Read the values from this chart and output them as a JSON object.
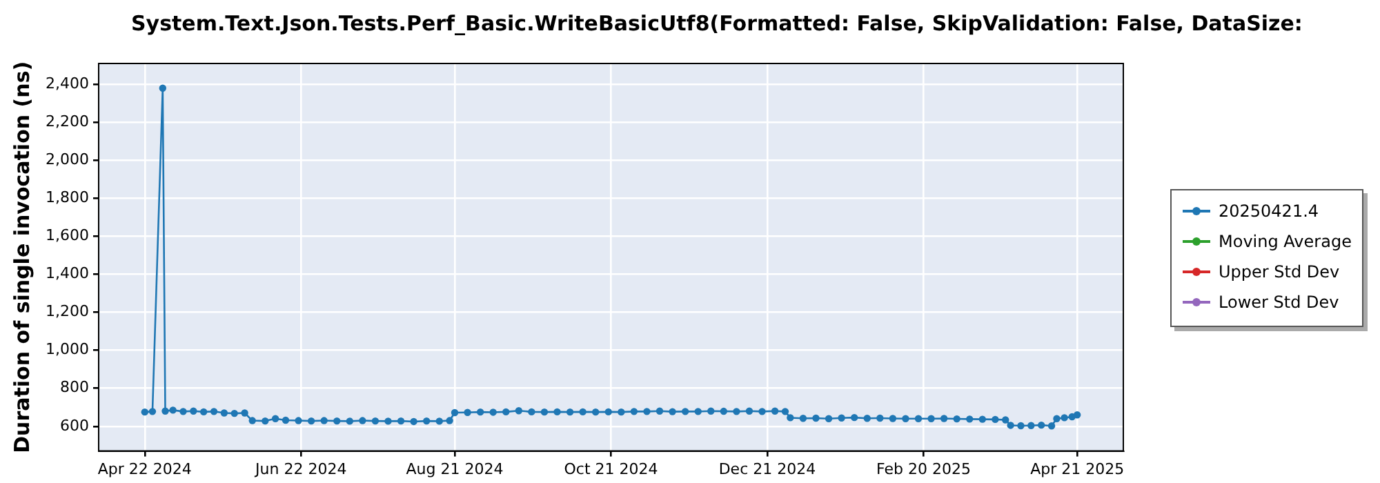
{
  "chart_data": {
    "type": "line",
    "title": "System.Text.Json.Tests.Perf_Basic.WriteBasicUtf8(Formatted: False, SkipValidation: False, DataSize:",
    "ylabel": "Duration of single invocation (ns)",
    "xlim": [
      "2024-04-04",
      "2025-05-09"
    ],
    "xticks": [
      {
        "value": "2024-04-22",
        "label": "Apr 22 2024"
      },
      {
        "value": "2024-06-22",
        "label": "Jun 22 2024"
      },
      {
        "value": "2024-08-21",
        "label": "Aug 21 2024"
      },
      {
        "value": "2024-10-21",
        "label": "Oct 21 2024"
      },
      {
        "value": "2024-12-21",
        "label": "Dec 21 2024"
      },
      {
        "value": "2025-02-20",
        "label": "Feb 20 2025"
      },
      {
        "value": "2025-04-21",
        "label": "Apr 21 2025"
      }
    ],
    "ylim": [
      470,
      2510
    ],
    "yticks": [
      {
        "value": 600,
        "label": "600"
      },
      {
        "value": 800,
        "label": "800"
      },
      {
        "value": 1000,
        "label": "1,000"
      },
      {
        "value": 1200,
        "label": "1,200"
      },
      {
        "value": 1400,
        "label": "1,400"
      },
      {
        "value": 1600,
        "label": "1,600"
      },
      {
        "value": 1800,
        "label": "1,800"
      },
      {
        "value": 2000,
        "label": "2,000"
      },
      {
        "value": 2200,
        "label": "2,200"
      },
      {
        "value": 2400,
        "label": "2,400"
      }
    ],
    "x": [
      "2024-04-22",
      "2024-04-25",
      "2024-04-29",
      "2024-04-30",
      "2024-05-03",
      "2024-05-07",
      "2024-05-11",
      "2024-05-15",
      "2024-05-19",
      "2024-05-23",
      "2024-05-27",
      "2024-05-31",
      "2024-06-03",
      "2024-06-08",
      "2024-06-12",
      "2024-06-16",
      "2024-06-21",
      "2024-06-26",
      "2024-07-01",
      "2024-07-06",
      "2024-07-11",
      "2024-07-16",
      "2024-07-21",
      "2024-07-26",
      "2024-07-31",
      "2024-08-05",
      "2024-08-10",
      "2024-08-15",
      "2024-08-19",
      "2024-08-21",
      "2024-08-26",
      "2024-08-31",
      "2024-09-05",
      "2024-09-10",
      "2024-09-15",
      "2024-09-20",
      "2024-09-25",
      "2024-09-30",
      "2024-10-05",
      "2024-10-10",
      "2024-10-15",
      "2024-10-20",
      "2024-10-25",
      "2024-10-30",
      "2024-11-04",
      "2024-11-09",
      "2024-11-14",
      "2024-11-19",
      "2024-11-24",
      "2024-11-29",
      "2024-12-04",
      "2024-12-09",
      "2024-12-14",
      "2024-12-19",
      "2024-12-24",
      "2024-12-28",
      "2024-12-30",
      "2025-01-04",
      "2025-01-09",
      "2025-01-14",
      "2025-01-19",
      "2025-01-24",
      "2025-01-29",
      "2025-02-03",
      "2025-02-08",
      "2025-02-13",
      "2025-02-18",
      "2025-02-23",
      "2025-02-28",
      "2025-03-05",
      "2025-03-10",
      "2025-03-15",
      "2025-03-20",
      "2025-03-24",
      "2025-03-26",
      "2025-03-30",
      "2025-04-03",
      "2025-04-07",
      "2025-04-11",
      "2025-04-13",
      "2025-04-16",
      "2025-04-19",
      "2025-04-21"
    ],
    "series": [
      {
        "name": "20250421.4",
        "color": "#1f77b4",
        "values": [
          675,
          678,
          2380,
          680,
          685,
          678,
          680,
          676,
          678,
          670,
          668,
          670,
          630,
          628,
          640,
          632,
          630,
          628,
          630,
          628,
          627,
          630,
          628,
          627,
          628,
          625,
          628,
          627,
          630,
          672,
          673,
          675,
          674,
          676,
          682,
          676,
          675,
          676,
          675,
          676,
          675,
          676,
          675,
          678,
          678,
          680,
          677,
          678,
          678,
          680,
          679,
          678,
          680,
          678,
          680,
          678,
          645,
          642,
          643,
          640,
          644,
          646,
          642,
          643,
          641,
          640,
          640,
          640,
          641,
          639,
          638,
          637,
          636,
          634,
          605,
          603,
          604,
          606,
          602,
          640,
          645,
          650,
          660
        ]
      },
      {
        "name": "Moving Average",
        "color": "#2ca02c",
        "values": [
          null,
          null,
          null,
          null,
          null,
          null,
          null,
          null,
          null,
          null,
          null,
          null,
          null,
          null,
          null,
          null,
          null,
          null,
          null,
          null,
          null,
          null,
          null,
          null,
          null,
          null,
          null,
          null,
          null,
          null,
          null,
          null,
          null,
          null,
          null,
          null,
          null,
          null,
          null,
          null,
          null,
          null,
          null,
          null,
          null,
          null,
          null,
          null,
          null,
          null,
          null,
          null,
          null,
          null,
          null,
          null,
          null,
          null,
          null,
          null,
          null,
          null,
          null,
          null,
          null,
          null,
          null,
          null,
          null,
          null,
          null,
          null,
          null,
          null,
          null,
          null,
          null,
          null,
          null,
          null,
          null,
          null,
          null
        ]
      },
      {
        "name": "Upper Std Dev",
        "color": "#d62728",
        "values": [
          null,
          null,
          null,
          null,
          null,
          null,
          null,
          null,
          null,
          null,
          null,
          null,
          null,
          null,
          null,
          null,
          null,
          null,
          null,
          null,
          null,
          null,
          null,
          null,
          null,
          null,
          null,
          null,
          null,
          null,
          null,
          null,
          null,
          null,
          null,
          null,
          null,
          null,
          null,
          null,
          null,
          null,
          null,
          null,
          null,
          null,
          null,
          null,
          null,
          null,
          null,
          null,
          null,
          null,
          null,
          null,
          null,
          null,
          null,
          null,
          null,
          null,
          null,
          null,
          null,
          null,
          null,
          null,
          null,
          null,
          null,
          null,
          null,
          null,
          null,
          null,
          null,
          null,
          null,
          null,
          null,
          null,
          null
        ]
      },
      {
        "name": "Lower Std Dev",
        "color": "#9467bd",
        "values": [
          null,
          null,
          null,
          null,
          null,
          null,
          null,
          null,
          null,
          null,
          null,
          null,
          null,
          null,
          null,
          null,
          null,
          null,
          null,
          null,
          null,
          null,
          null,
          null,
          null,
          null,
          null,
          null,
          null,
          null,
          null,
          null,
          null,
          null,
          null,
          null,
          null,
          null,
          null,
          null,
          null,
          null,
          null,
          null,
          null,
          null,
          null,
          null,
          null,
          null,
          null,
          null,
          null,
          null,
          null,
          null,
          null,
          null,
          null,
          null,
          null,
          null,
          null,
          null,
          null,
          null,
          null,
          null,
          null,
          null,
          null,
          null,
          null,
          null,
          null,
          null,
          null,
          null,
          null,
          null,
          null,
          null,
          null
        ]
      }
    ],
    "marker": "circle",
    "line_style": "solid",
    "grid": true,
    "legend": "right"
  }
}
